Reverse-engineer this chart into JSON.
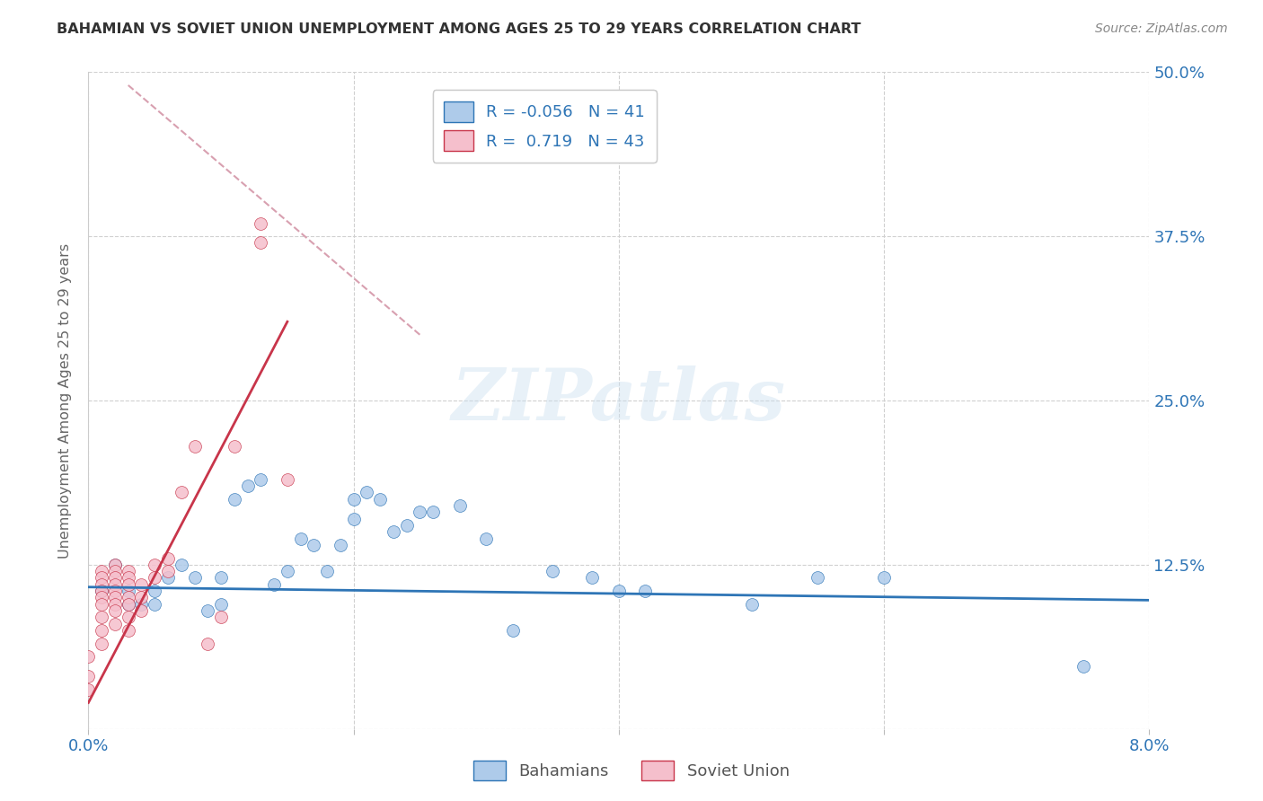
{
  "title": "BAHAMIAN VS SOVIET UNION UNEMPLOYMENT AMONG AGES 25 TO 29 YEARS CORRELATION CHART",
  "source": "Source: ZipAtlas.com",
  "ylabel": "Unemployment Among Ages 25 to 29 years",
  "xlim": [
    0.0,
    0.08
  ],
  "ylim": [
    0.0,
    0.5
  ],
  "xtick_pos": [
    0.0,
    0.02,
    0.04,
    0.06,
    0.08
  ],
  "xtick_labels": [
    "0.0%",
    "",
    "",
    "",
    "8.0%"
  ],
  "ytick_pos": [
    0.0,
    0.125,
    0.25,
    0.375,
    0.5
  ],
  "ytick_labels_right": [
    "",
    "12.5%",
    "25.0%",
    "37.5%",
    "50.0%"
  ],
  "grid_color": "#d0d0d0",
  "watermark_text": "ZIPatlas",
  "blue_scatter_color": "#aecbea",
  "pink_scatter_color": "#f5bfcc",
  "blue_line_color": "#2e75b6",
  "pink_line_color": "#c8354a",
  "ref_line_color": "#d8a0b0",
  "legend_R_blue": "-0.056",
  "legend_N_blue": "41",
  "legend_R_pink": "0.719",
  "legend_N_pink": "43",
  "bahamians_x": [
    0.001,
    0.002,
    0.003,
    0.003,
    0.004,
    0.005,
    0.005,
    0.006,
    0.007,
    0.008,
    0.009,
    0.01,
    0.01,
    0.011,
    0.012,
    0.013,
    0.014,
    0.015,
    0.016,
    0.017,
    0.018,
    0.019,
    0.02,
    0.02,
    0.021,
    0.022,
    0.023,
    0.024,
    0.025,
    0.026,
    0.028,
    0.03,
    0.032,
    0.035,
    0.038,
    0.04,
    0.042,
    0.05,
    0.055,
    0.06,
    0.075
  ],
  "bahamians_y": [
    0.105,
    0.125,
    0.105,
    0.095,
    0.095,
    0.105,
    0.095,
    0.115,
    0.125,
    0.115,
    0.09,
    0.095,
    0.115,
    0.175,
    0.185,
    0.19,
    0.11,
    0.12,
    0.145,
    0.14,
    0.12,
    0.14,
    0.175,
    0.16,
    0.18,
    0.175,
    0.15,
    0.155,
    0.165,
    0.165,
    0.17,
    0.145,
    0.075,
    0.12,
    0.115,
    0.105,
    0.105,
    0.095,
    0.115,
    0.115,
    0.048
  ],
  "soviet_x": [
    0.0,
    0.0,
    0.0,
    0.001,
    0.001,
    0.001,
    0.001,
    0.001,
    0.001,
    0.001,
    0.001,
    0.001,
    0.002,
    0.002,
    0.002,
    0.002,
    0.002,
    0.002,
    0.002,
    0.002,
    0.002,
    0.003,
    0.003,
    0.003,
    0.003,
    0.003,
    0.003,
    0.003,
    0.004,
    0.004,
    0.004,
    0.005,
    0.005,
    0.006,
    0.006,
    0.007,
    0.008,
    0.009,
    0.01,
    0.011,
    0.013,
    0.013,
    0.015
  ],
  "soviet_y": [
    0.055,
    0.04,
    0.03,
    0.12,
    0.115,
    0.11,
    0.105,
    0.1,
    0.095,
    0.085,
    0.075,
    0.065,
    0.125,
    0.12,
    0.115,
    0.11,
    0.105,
    0.1,
    0.095,
    0.09,
    0.08,
    0.12,
    0.115,
    0.11,
    0.1,
    0.095,
    0.085,
    0.075,
    0.11,
    0.1,
    0.09,
    0.125,
    0.115,
    0.13,
    0.12,
    0.18,
    0.215,
    0.065,
    0.085,
    0.215,
    0.385,
    0.37,
    0.19
  ],
  "pink_trendline_x": [
    0.0,
    0.015
  ],
  "pink_trendline_y": [
    0.02,
    0.31
  ],
  "blue_trendline_x": [
    0.0,
    0.08
  ],
  "blue_trendline_y": [
    0.108,
    0.098
  ],
  "ref_line_x": [
    0.003,
    0.025
  ],
  "ref_line_y": [
    0.49,
    0.3
  ]
}
